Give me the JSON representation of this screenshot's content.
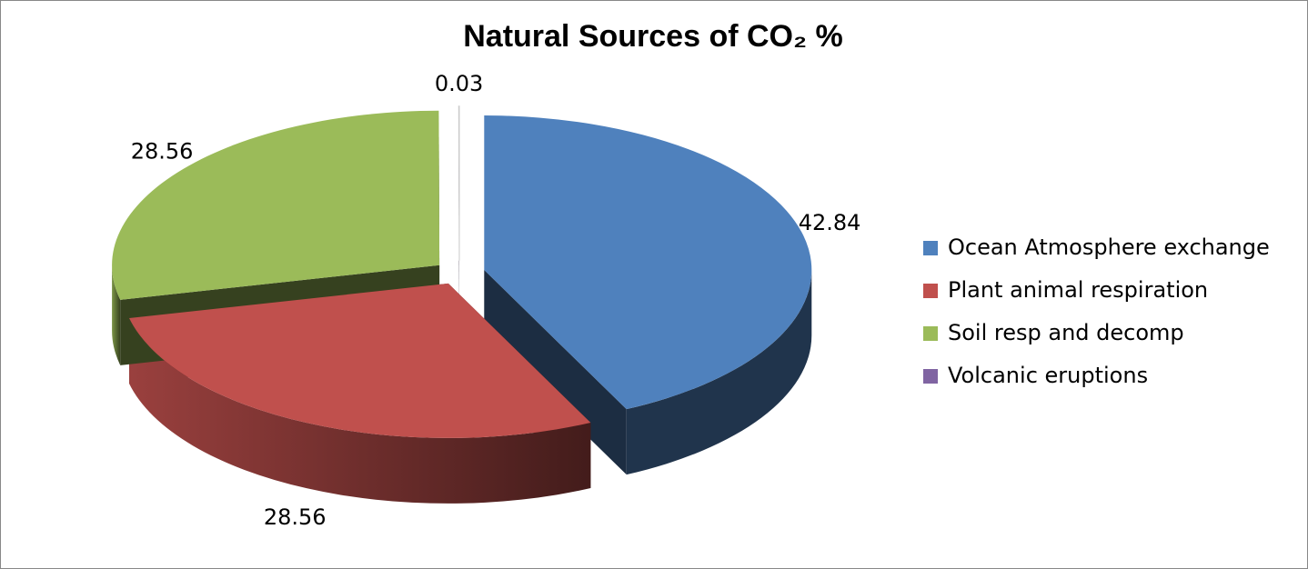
{
  "chart_data": {
    "type": "pie",
    "title": "Natural Sources of CO₂  %",
    "categories": [
      "Ocean Atmosphere exchange",
      "Plant  animal respiration",
      "Soil resp and decomp",
      "Volcanic eruptions"
    ],
    "values": [
      42.84,
      28.56,
      28.56,
      0.03
    ],
    "colors": [
      "#4f81bd",
      "#c0504d",
      "#9bbb59",
      "#8064a2"
    ],
    "legend": "right"
  }
}
